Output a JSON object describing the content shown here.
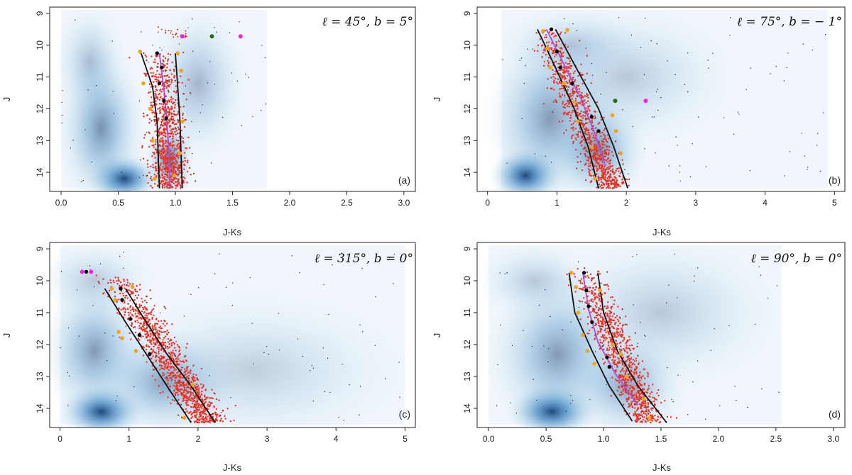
{
  "figure": {
    "panels_count": 4
  },
  "chart_data": [
    {
      "type": "scatter",
      "panel_label": "(a)",
      "annotation": "ℓ = 45°, b = 5°",
      "xlabel": "J-Ks",
      "ylabel": "J",
      "xlim": [
        -0.1,
        3.1
      ],
      "ylim": [
        14.6,
        8.8
      ],
      "xticks": [
        0.0,
        0.5,
        1.0,
        1.5,
        2.0,
        2.5,
        3.0
      ],
      "xtick_labels": [
        "0.0",
        "0.5",
        "1.0",
        "1.5",
        "2.0",
        "2.5",
        "3.0"
      ],
      "yticks": [
        9,
        10,
        11,
        12,
        13,
        14
      ],
      "density_blobs": [
        {
          "x": 0.55,
          "y": 14.2,
          "sx": 0.18,
          "sy": 0.45,
          "intensity": 1.0
        },
        {
          "x": 0.35,
          "y": 12.6,
          "sx": 0.22,
          "sy": 1.5,
          "intensity": 0.55
        },
        {
          "x": 0.95,
          "y": 13.6,
          "sx": 0.12,
          "sy": 0.8,
          "intensity": 0.7
        },
        {
          "x": 1.2,
          "y": 11.2,
          "sx": 0.25,
          "sy": 1.4,
          "intensity": 0.35
        },
        {
          "x": 0.25,
          "y": 10.5,
          "sx": 0.18,
          "sy": 1.0,
          "intensity": 0.3
        }
      ],
      "field_extent": {
        "xmin": 0.0,
        "xmax": 1.8
      },
      "boundary_left": [
        [
          0.7,
          10.25
        ],
        [
          0.8,
          11.3
        ],
        [
          0.84,
          12.4
        ],
        [
          0.85,
          13.5
        ],
        [
          0.86,
          14.5
        ]
      ],
      "boundary_right": [
        [
          1.0,
          10.25
        ],
        [
          1.02,
          11.3
        ],
        [
          1.04,
          12.4
        ],
        [
          1.05,
          13.5
        ],
        [
          1.06,
          14.5
        ]
      ],
      "ridge_line": [
        [
          0.86,
          10.25
        ],
        [
          0.9,
          11.4
        ],
        [
          0.93,
          12.6
        ],
        [
          0.95,
          13.8
        ],
        [
          0.95,
          14.5
        ]
      ],
      "sequence": {
        "x0": 0.86,
        "y0": 10.2,
        "x1": 0.96,
        "y1": 14.5,
        "width": 0.17,
        "density": 900
      },
      "black_points": [
        [
          0.84,
          10.25
        ],
        [
          0.88,
          10.7
        ],
        [
          0.86,
          11.2
        ],
        [
          0.9,
          11.75
        ],
        [
          0.92,
          12.3
        ]
      ],
      "orange_points": [
        [
          0.69,
          10.2
        ],
        [
          0.72,
          11.2
        ],
        [
          0.78,
          12.0
        ],
        [
          0.8,
          13.0
        ],
        [
          0.82,
          14.2
        ],
        [
          1.02,
          10.25
        ],
        [
          1.05,
          10.8
        ],
        [
          1.06,
          12.4
        ],
        [
          1.04,
          13.4
        ],
        [
          0.99,
          14.1
        ]
      ],
      "magenta_points": [
        [
          1.06,
          9.72
        ],
        [
          1.57,
          9.72
        ]
      ],
      "green_points": [
        [
          1.32,
          9.72
        ]
      ],
      "red_trail": [
        [
          0.85,
          9.5,
          1.1,
          9.72
        ]
      ],
      "scattered_dots": 70
    },
    {
      "type": "scatter",
      "panel_label": "(b)",
      "annotation": "ℓ = 75°, b = − 1°",
      "xlabel": "J-Ks",
      "ylabel": "J",
      "xlim": [
        -0.15,
        5.15
      ],
      "ylim": [
        14.6,
        8.8
      ],
      "xticks": [
        0,
        1,
        2,
        3,
        4,
        5
      ],
      "xtick_labels": [
        "0",
        "1",
        "2",
        "3",
        "4",
        "5"
      ],
      "yticks": [
        9,
        10,
        11,
        12,
        13,
        14
      ],
      "density_blobs": [
        {
          "x": 0.55,
          "y": 14.1,
          "sx": 0.3,
          "sy": 0.5,
          "intensity": 1.0
        },
        {
          "x": 0.9,
          "y": 12.3,
          "sx": 0.55,
          "sy": 1.6,
          "intensity": 0.5
        },
        {
          "x": 1.6,
          "y": 13.3,
          "sx": 0.4,
          "sy": 1.0,
          "intensity": 0.55
        },
        {
          "x": 2.0,
          "y": 11.0,
          "sx": 0.9,
          "sy": 1.3,
          "intensity": 0.25
        },
        {
          "x": 1.2,
          "y": 10.0,
          "sx": 0.6,
          "sy": 0.7,
          "intensity": 0.25
        }
      ],
      "field_extent": {
        "xmin": 0.2,
        "xmax": 4.9
      },
      "boundary_left": [
        [
          0.72,
          9.5
        ],
        [
          1.0,
          10.8
        ],
        [
          1.25,
          12.0
        ],
        [
          1.45,
          13.2
        ],
        [
          1.6,
          14.5
        ]
      ],
      "boundary_right": [
        [
          0.98,
          9.5
        ],
        [
          1.3,
          10.8
        ],
        [
          1.6,
          12.0
        ],
        [
          1.82,
          13.2
        ],
        [
          2.02,
          14.5
        ]
      ],
      "ridge_line": [
        [
          0.85,
          9.5
        ],
        [
          1.1,
          10.6
        ],
        [
          1.35,
          11.7
        ],
        [
          1.55,
          12.8
        ],
        [
          1.7,
          13.8
        ]
      ],
      "sequence": {
        "x0": 0.85,
        "y0": 9.5,
        "x1": 1.78,
        "y1": 14.5,
        "width": 0.28,
        "density": 900
      },
      "black_points": [
        [
          0.92,
          9.5
        ],
        [
          1.0,
          10.2
        ],
        [
          1.05,
          10.7
        ],
        [
          1.22,
          11.2
        ],
        [
          1.5,
          12.25
        ],
        [
          1.6,
          12.7
        ]
      ],
      "orange_points": [
        [
          0.8,
          9.55
        ],
        [
          0.86,
          10.1
        ],
        [
          0.9,
          10.7
        ],
        [
          1.1,
          11.2
        ],
        [
          1.25,
          11.8
        ],
        [
          1.3,
          12.4
        ],
        [
          1.5,
          13.2
        ],
        [
          1.55,
          14.2
        ],
        [
          1.15,
          9.52
        ],
        [
          1.8,
          12.2
        ],
        [
          1.85,
          12.7
        ],
        [
          1.92,
          13.4
        ]
      ],
      "magenta_points": [
        [
          2.28,
          11.75
        ]
      ],
      "green_points": [
        [
          1.84,
          11.75
        ]
      ],
      "red_trail": [],
      "scattered_dots": 90
    },
    {
      "type": "scatter",
      "panel_label": "(c)",
      "annotation": "ℓ = 315°, b = 0°",
      "xlabel": "J-Ks",
      "ylabel": "J",
      "xlim": [
        -0.15,
        5.15
      ],
      "ylim": [
        14.6,
        8.8
      ],
      "xticks": [
        0,
        1,
        2,
        3,
        4,
        5
      ],
      "xtick_labels": [
        "0",
        "1",
        "2",
        "3",
        "4",
        "5"
      ],
      "yticks": [
        9,
        10,
        11,
        12,
        13,
        14
      ],
      "density_blobs": [
        {
          "x": 0.6,
          "y": 14.1,
          "sx": 0.35,
          "sy": 0.5,
          "intensity": 1.0
        },
        {
          "x": 0.5,
          "y": 12.2,
          "sx": 0.45,
          "sy": 1.3,
          "intensity": 0.5
        },
        {
          "x": 1.5,
          "y": 13.2,
          "sx": 0.6,
          "sy": 1.0,
          "intensity": 0.45
        },
        {
          "x": 2.8,
          "y": 12.8,
          "sx": 1.3,
          "sy": 1.4,
          "intensity": 0.22
        },
        {
          "x": 0.5,
          "y": 10.0,
          "sx": 0.5,
          "sy": 0.7,
          "intensity": 0.25
        }
      ],
      "field_extent": {
        "xmin": 0.0,
        "xmax": 5.0
      },
      "boundary_left": [
        [
          0.65,
          10.25
        ],
        [
          0.95,
          11.3
        ],
        [
          1.25,
          12.3
        ],
        [
          1.55,
          13.3
        ],
        [
          1.9,
          14.45
        ]
      ],
      "boundary_right": [
        [
          0.95,
          10.25
        ],
        [
          1.25,
          11.3
        ],
        [
          1.55,
          12.3
        ],
        [
          1.9,
          13.3
        ],
        [
          2.25,
          14.45
        ]
      ],
      "ridge_line": [],
      "sequence": {
        "x0": 0.8,
        "y0": 9.8,
        "x1": 2.15,
        "y1": 14.45,
        "width": 0.32,
        "density": 1100
      },
      "black_points": [
        [
          0.88,
          10.25
        ],
        [
          0.9,
          10.6
        ],
        [
          1.02,
          11.2
        ],
        [
          1.15,
          11.7
        ],
        [
          1.3,
          12.3
        ]
      ],
      "orange_points": [
        [
          0.75,
          10.25
        ],
        [
          0.8,
          10.6
        ],
        [
          0.85,
          11.6
        ],
        [
          0.9,
          11.8
        ],
        [
          1.05,
          10.2
        ],
        [
          1.1,
          12.2
        ],
        [
          1.92,
          13.25
        ],
        [
          1.8,
          14.3
        ]
      ],
      "magenta_points": [
        [
          0.32,
          9.72
        ],
        [
          0.45,
          9.72
        ]
      ],
      "green_points": [],
      "black_extra": [
        [
          0.38,
          9.72
        ]
      ],
      "red_trail": [],
      "scattered_dots": 90
    },
    {
      "type": "scatter",
      "panel_label": "(d)",
      "annotation": "ℓ = 90°, b = 0°",
      "xlabel": "J-Ks",
      "ylabel": "J",
      "xlim": [
        -0.1,
        3.1
      ],
      "ylim": [
        14.6,
        8.8
      ],
      "xticks": [
        0.0,
        0.5,
        1.0,
        1.5,
        2.0,
        2.5,
        3.0
      ],
      "xtick_labels": [
        "0.0",
        "0.5",
        "1.0",
        "1.5",
        "2.0",
        "2.5",
        "3.0"
      ],
      "yticks": [
        9,
        10,
        11,
        12,
        13,
        14
      ],
      "density_blobs": [
        {
          "x": 0.55,
          "y": 14.1,
          "sx": 0.22,
          "sy": 0.5,
          "intensity": 1.0
        },
        {
          "x": 0.6,
          "y": 12.3,
          "sx": 0.35,
          "sy": 1.5,
          "intensity": 0.5
        },
        {
          "x": 1.2,
          "y": 13.3,
          "sx": 0.3,
          "sy": 1.0,
          "intensity": 0.45
        },
        {
          "x": 1.5,
          "y": 11.0,
          "sx": 0.6,
          "sy": 1.4,
          "intensity": 0.25
        },
        {
          "x": 0.4,
          "y": 10.0,
          "sx": 0.3,
          "sy": 0.7,
          "intensity": 0.25
        }
      ],
      "field_extent": {
        "xmin": 0.0,
        "xmax": 2.55
      },
      "boundary_left": [
        [
          0.7,
          9.75
        ],
        [
          0.75,
          11.0
        ],
        [
          0.9,
          12.2
        ],
        [
          1.05,
          13.3
        ],
        [
          1.25,
          14.4
        ]
      ],
      "boundary_right": [
        [
          0.95,
          9.75
        ],
        [
          1.0,
          11.0
        ],
        [
          1.12,
          12.2
        ],
        [
          1.3,
          13.3
        ],
        [
          1.55,
          14.45
        ]
      ],
      "ridge_line": [
        [
          0.82,
          9.75
        ],
        [
          0.87,
          10.9
        ],
        [
          0.95,
          11.9
        ],
        [
          1.1,
          12.9
        ],
        [
          1.3,
          13.9
        ]
      ],
      "sequence": {
        "x0": 0.83,
        "y0": 9.6,
        "x1": 1.4,
        "y1": 14.45,
        "width": 0.17,
        "density": 900
      },
      "black_points": [
        [
          0.83,
          9.75
        ],
        [
          0.85,
          10.3
        ],
        [
          0.87,
          10.8
        ],
        [
          0.9,
          11.3
        ],
        [
          1.03,
          12.4
        ],
        [
          1.05,
          12.7
        ]
      ],
      "orange_points": [
        [
          0.72,
          9.75
        ],
        [
          0.76,
          10.2
        ],
        [
          0.78,
          11.0
        ],
        [
          0.82,
          11.7
        ],
        [
          0.86,
          12.2
        ],
        [
          0.92,
          12.6
        ],
        [
          0.97,
          10.3
        ],
        [
          1.08,
          12.0
        ],
        [
          1.15,
          12.3
        ],
        [
          1.2,
          13.0
        ],
        [
          1.35,
          13.7
        ],
        [
          1.4,
          14.3
        ]
      ],
      "magenta_points": [],
      "green_points": [],
      "red_trail": [],
      "scattered_dots": 80
    }
  ]
}
